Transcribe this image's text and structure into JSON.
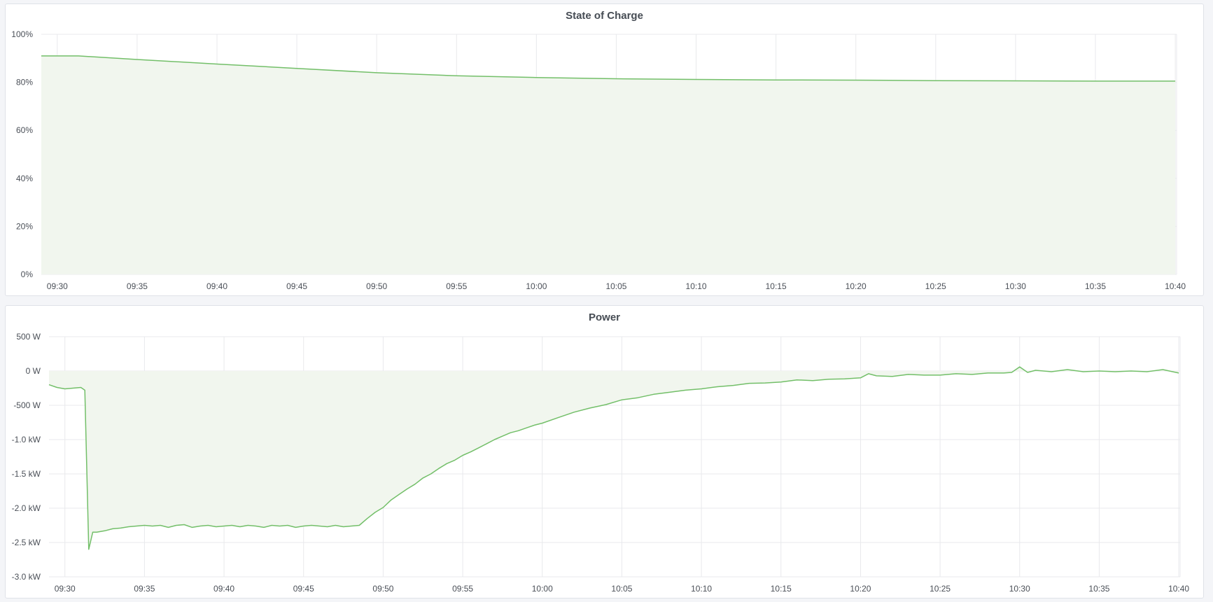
{
  "chart_data": [
    {
      "type": "area",
      "title": "State of Charge",
      "x_range": [
        "09:29:00",
        "10:40:05"
      ],
      "x_ticks": [
        "09:30",
        "09:35",
        "09:40",
        "09:45",
        "09:50",
        "09:55",
        "10:00",
        "10:05",
        "10:10",
        "10:15",
        "10:20",
        "10:25",
        "10:30",
        "10:35",
        "10:40"
      ],
      "ylim": [
        0,
        100
      ],
      "y_ticks": [
        0,
        20,
        40,
        60,
        80,
        100
      ],
      "y_tick_labels": [
        "0%",
        "20%",
        "40%",
        "60%",
        "80%",
        "100%"
      ],
      "grid": true,
      "color": "#73bf69",
      "fill": "#f1f6ee",
      "points": [
        [
          "09:29:00",
          91.0
        ],
        [
          "09:31:20",
          91.0
        ],
        [
          "09:35",
          89.5
        ],
        [
          "09:40",
          87.6
        ],
        [
          "09:45",
          85.8
        ],
        [
          "09:50",
          84.0
        ],
        [
          "09:55",
          82.7
        ],
        [
          "10:00",
          82.0
        ],
        [
          "10:05",
          81.5
        ],
        [
          "10:10",
          81.2
        ],
        [
          "10:15",
          81.0
        ],
        [
          "10:20",
          80.9
        ],
        [
          "10:25",
          80.7
        ],
        [
          "10:30",
          80.6
        ],
        [
          "10:35",
          80.5
        ],
        [
          "10:40",
          80.5
        ]
      ]
    },
    {
      "type": "area",
      "title": "Power",
      "x_range": [
        "09:29:00",
        "10:40:05"
      ],
      "x_ticks": [
        "09:30",
        "09:35",
        "09:40",
        "09:45",
        "09:50",
        "09:55",
        "10:00",
        "10:05",
        "10:10",
        "10:15",
        "10:20",
        "10:25",
        "10:30",
        "10:35",
        "10:40"
      ],
      "ylim": [
        -3000,
        500
      ],
      "y_ticks": [
        -3000,
        -2500,
        -2000,
        -1500,
        -1000,
        -500,
        0,
        500
      ],
      "y_tick_labels": [
        "-3.0 kW",
        "-2.5 kW",
        "-2.0 kW",
        "-1.5 kW",
        "-1.0 kW",
        "-500 W",
        "0 W",
        "500 W"
      ],
      "unit": "W",
      "grid": true,
      "color": "#73bf69",
      "fill": "#f1f6ee",
      "points": [
        [
          "09:29:00",
          -200
        ],
        [
          "09:29:30",
          -240
        ],
        [
          "09:30",
          -260
        ],
        [
          "09:30:30",
          -250
        ],
        [
          "09:31",
          -240
        ],
        [
          "09:31:15",
          -280
        ],
        [
          "09:31:30",
          -2600
        ],
        [
          "09:31:45",
          -2350
        ],
        [
          "09:32",
          -2350
        ],
        [
          "09:32:30",
          -2330
        ],
        [
          "09:33",
          -2300
        ],
        [
          "09:33:30",
          -2290
        ],
        [
          "09:34",
          -2270
        ],
        [
          "09:34:30",
          -2260
        ],
        [
          "09:35",
          -2250
        ],
        [
          "09:35:30",
          -2260
        ],
        [
          "09:36",
          -2250
        ],
        [
          "09:36:30",
          -2280
        ],
        [
          "09:37",
          -2250
        ],
        [
          "09:37:30",
          -2240
        ],
        [
          "09:38",
          -2280
        ],
        [
          "09:38:30",
          -2260
        ],
        [
          "09:39",
          -2250
        ],
        [
          "09:39:30",
          -2270
        ],
        [
          "09:40",
          -2260
        ],
        [
          "09:40:30",
          -2250
        ],
        [
          "09:41",
          -2270
        ],
        [
          "09:41:30",
          -2250
        ],
        [
          "09:42",
          -2260
        ],
        [
          "09:42:30",
          -2280
        ],
        [
          "09:43",
          -2250
        ],
        [
          "09:43:30",
          -2260
        ],
        [
          "09:44",
          -2250
        ],
        [
          "09:44:30",
          -2280
        ],
        [
          "09:45",
          -2260
        ],
        [
          "09:45:30",
          -2250
        ],
        [
          "09:46",
          -2260
        ],
        [
          "09:46:30",
          -2270
        ],
        [
          "09:47",
          -2250
        ],
        [
          "09:47:30",
          -2270
        ],
        [
          "09:48",
          -2260
        ],
        [
          "09:48:30",
          -2250
        ],
        [
          "09:49",
          -2150
        ],
        [
          "09:49:30",
          -2060
        ],
        [
          "09:50",
          -1990
        ],
        [
          "09:50:30",
          -1880
        ],
        [
          "09:51",
          -1800
        ],
        [
          "09:51:30",
          -1720
        ],
        [
          "09:52",
          -1650
        ],
        [
          "09:52:30",
          -1560
        ],
        [
          "09:53",
          -1500
        ],
        [
          "09:53:30",
          -1420
        ],
        [
          "09:54",
          -1350
        ],
        [
          "09:54:30",
          -1300
        ],
        [
          "09:55",
          -1230
        ],
        [
          "09:55:30",
          -1180
        ],
        [
          "09:56",
          -1120
        ],
        [
          "09:56:30",
          -1060
        ],
        [
          "09:57",
          -1000
        ],
        [
          "09:57:30",
          -950
        ],
        [
          "09:58",
          -900
        ],
        [
          "09:58:30",
          -870
        ],
        [
          "09:59",
          -830
        ],
        [
          "09:59:30",
          -790
        ],
        [
          "10:00",
          -760
        ],
        [
          "10:01",
          -680
        ],
        [
          "10:02",
          -600
        ],
        [
          "10:03",
          -540
        ],
        [
          "10:04",
          -490
        ],
        [
          "10:05",
          -420
        ],
        [
          "10:06",
          -390
        ],
        [
          "10:07",
          -340
        ],
        [
          "10:08",
          -310
        ],
        [
          "10:09",
          -280
        ],
        [
          "10:10",
          -260
        ],
        [
          "10:11",
          -230
        ],
        [
          "10:12",
          -210
        ],
        [
          "10:13",
          -180
        ],
        [
          "10:14",
          -175
        ],
        [
          "10:15",
          -160
        ],
        [
          "10:16",
          -130
        ],
        [
          "10:17",
          -140
        ],
        [
          "10:18",
          -120
        ],
        [
          "10:19",
          -115
        ],
        [
          "10:20",
          -100
        ],
        [
          "10:20:30",
          -40
        ],
        [
          "10:21",
          -70
        ],
        [
          "10:22",
          -80
        ],
        [
          "10:23",
          -50
        ],
        [
          "10:24",
          -60
        ],
        [
          "10:25",
          -60
        ],
        [
          "10:26",
          -40
        ],
        [
          "10:27",
          -50
        ],
        [
          "10:28",
          -30
        ],
        [
          "10:29",
          -30
        ],
        [
          "10:29:30",
          -20
        ],
        [
          "10:30",
          60
        ],
        [
          "10:30:30",
          -20
        ],
        [
          "10:31",
          10
        ],
        [
          "10:32",
          -10
        ],
        [
          "10:33",
          20
        ],
        [
          "10:34",
          -10
        ],
        [
          "10:35",
          0
        ],
        [
          "10:36",
          -10
        ],
        [
          "10:37",
          0
        ],
        [
          "10:38",
          -10
        ],
        [
          "10:39",
          20
        ],
        [
          "10:40",
          -30
        ]
      ]
    }
  ]
}
